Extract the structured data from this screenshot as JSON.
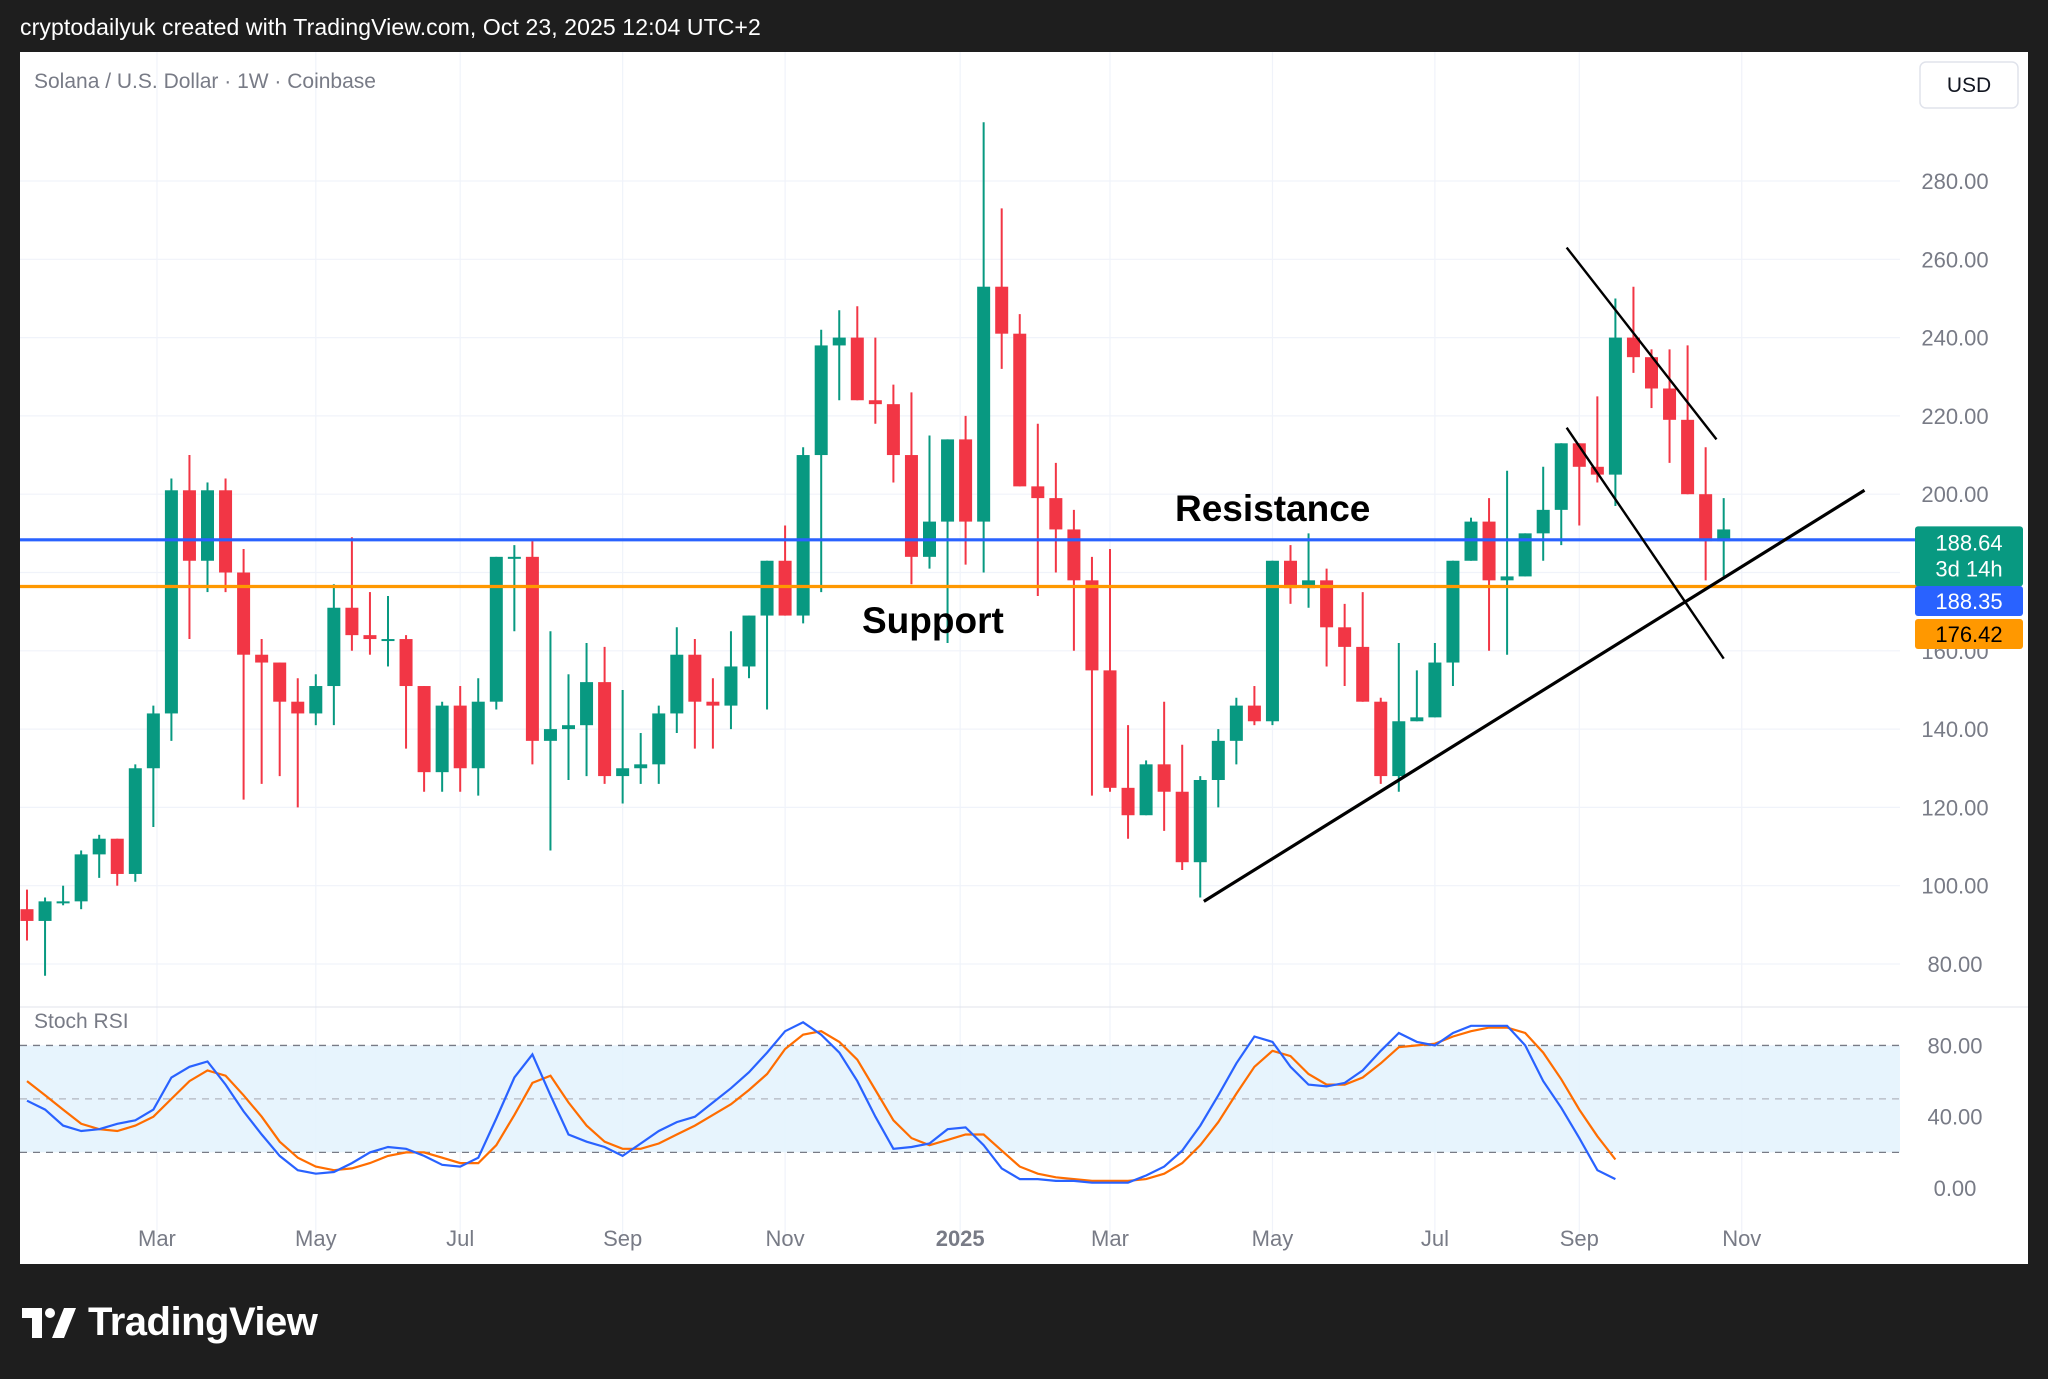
{
  "header": {
    "text": "cryptodailyuk created with TradingView.com, Oct 23, 2025 12:04 UTC+2"
  },
  "footer": {
    "brand": "TradingView",
    "logo_icon": "tradingview-logo-icon"
  },
  "colors": {
    "up": "#089981",
    "down": "#f23645",
    "resistance": "#2962ff",
    "support": "#ff9800",
    "stoch_k": "#2962ff",
    "stoch_d": "#ff6d00",
    "stoch_band": "#e3f2fd",
    "header_bg": "#1e1e1e"
  },
  "chart_data": {
    "type": "candlestick",
    "symbol_label": "Solana / U.S. Dollar · 1W · Coinbase",
    "currency_button": "USD",
    "price_axis": {
      "ticks": [
        "80.00",
        "100.00",
        "120.00",
        "140.00",
        "160.00",
        "180.00",
        "200.00",
        "220.00",
        "240.00",
        "260.00",
        "280.00"
      ],
      "tick_values": [
        80,
        100,
        120,
        140,
        160,
        180,
        200,
        220,
        240,
        260,
        280
      ],
      "range": [
        61,
        305
      ]
    },
    "time_axis": {
      "labels": [
        "Mar",
        "May",
        "Jul",
        "Sep",
        "Nov",
        "2025",
        "Mar",
        "May",
        "Jul",
        "Sep",
        "Nov"
      ],
      "label_positions_week": [
        7.2,
        16,
        24,
        33,
        42,
        51.7,
        60,
        69,
        78,
        86,
        95
      ]
    },
    "ohlc": [
      [
        null,
        99,
        86,
        91
      ],
      [
        91,
        97,
        77,
        96
      ],
      [
        96,
        100,
        95,
        96
      ],
      [
        96,
        109,
        94,
        108
      ],
      [
        108,
        113,
        102,
        112
      ],
      [
        112,
        112,
        100,
        103
      ],
      [
        103,
        131,
        101,
        130
      ],
      [
        130,
        146,
        115,
        144
      ],
      [
        144,
        204,
        137,
        201
      ],
      [
        201,
        210,
        163,
        183
      ],
      [
        183,
        203,
        175,
        201
      ],
      [
        201,
        204,
        175,
        180
      ],
      [
        180,
        186,
        122,
        159
      ],
      [
        159,
        163,
        126,
        157
      ],
      [
        157,
        157,
        128,
        147
      ],
      [
        147,
        153,
        120,
        144
      ],
      [
        144,
        154,
        141,
        151
      ],
      [
        151,
        177,
        141,
        171
      ],
      [
        171,
        189,
        160,
        164
      ],
      [
        164,
        175,
        159,
        163
      ],
      [
        163,
        174,
        156,
        163
      ],
      [
        163,
        164,
        135,
        151
      ],
      [
        151,
        151,
        124,
        129
      ],
      [
        129,
        147,
        124,
        146
      ],
      [
        146,
        151,
        124,
        130
      ],
      [
        130,
        153,
        123,
        147
      ],
      [
        147,
        184,
        145,
        184
      ],
      [
        184,
        187,
        165,
        184
      ],
      [
        184,
        188,
        131,
        137
      ],
      [
        137,
        165,
        109,
        140
      ],
      [
        140,
        154,
        127,
        141
      ],
      [
        141,
        162,
        128,
        152
      ],
      [
        152,
        161,
        126,
        128
      ],
      [
        128,
        150,
        121,
        130
      ],
      [
        130,
        139,
        126,
        131
      ],
      [
        131,
        146,
        126,
        144
      ],
      [
        144,
        166,
        139,
        159
      ],
      [
        159,
        163,
        135,
        147
      ],
      [
        147,
        153,
        135,
        146
      ],
      [
        146,
        165,
        140,
        156
      ],
      [
        156,
        166,
        153,
        169
      ],
      [
        169,
        183,
        145,
        183
      ],
      [
        183,
        192,
        169,
        169
      ],
      [
        169,
        212,
        167,
        210
      ],
      [
        210,
        242,
        175,
        238
      ],
      [
        238,
        247,
        224,
        240
      ],
      [
        240,
        248,
        225,
        224
      ],
      [
        224,
        240,
        218,
        223
      ],
      [
        223,
        228,
        203,
        210
      ],
      [
        210,
        226,
        177,
        184
      ],
      [
        184,
        215,
        181,
        193
      ],
      [
        193,
        214,
        162,
        214
      ],
      [
        214,
        220,
        182,
        193
      ],
      [
        193,
        295,
        180,
        253
      ],
      [
        253,
        273,
        232,
        241
      ],
      [
        241,
        246,
        219,
        202
      ],
      [
        202,
        218,
        174,
        199
      ],
      [
        199,
        208,
        180,
        191
      ],
      [
        191,
        196,
        160,
        178
      ],
      [
        178,
        184,
        123,
        155
      ],
      [
        155,
        186,
        124,
        125
      ],
      [
        125,
        141,
        112,
        118
      ],
      [
        118,
        132,
        119,
        131
      ],
      [
        131,
        147,
        114,
        124
      ],
      [
        124,
        136,
        104,
        106
      ],
      [
        106,
        128,
        97,
        127
      ],
      [
        127,
        140,
        120,
        137
      ],
      [
        137,
        148,
        131,
        146
      ],
      [
        146,
        151,
        141,
        142
      ],
      [
        142,
        178,
        141,
        183
      ],
      [
        183,
        187,
        172,
        176
      ],
      [
        176,
        190,
        171,
        178
      ],
      [
        178,
        181,
        156,
        166
      ],
      [
        166,
        172,
        151,
        161
      ],
      [
        161,
        175,
        148,
        147
      ],
      [
        147,
        148,
        126,
        128
      ],
      [
        128,
        162,
        124,
        142
      ],
      [
        142,
        155,
        145,
        143
      ],
      [
        143,
        162,
        148,
        157
      ],
      [
        157,
        182,
        151,
        183
      ],
      [
        183,
        194,
        183,
        193
      ],
      [
        193,
        199,
        160,
        178
      ],
      [
        178,
        206,
        159,
        179
      ],
      [
        179,
        186,
        179,
        190
      ],
      [
        190,
        207,
        183,
        196
      ],
      [
        196,
        209,
        187,
        213
      ],
      [
        213,
        210,
        192,
        207
      ],
      [
        207,
        225,
        203,
        205
      ],
      [
        205,
        250,
        197,
        240
      ],
      [
        240,
        253,
        231,
        235
      ],
      [
        235,
        237,
        222,
        227
      ],
      [
        227,
        237,
        208,
        219
      ],
      [
        219,
        238,
        212,
        200
      ],
      [
        200,
        212,
        178,
        188
      ],
      [
        188,
        199,
        179,
        191
      ]
    ],
    "stoch_rsi": {
      "ticks": [
        "0.00",
        "40.00",
        "80.00"
      ],
      "tick_values": [
        0,
        40,
        80
      ],
      "band": [
        20,
        80
      ],
      "k": [
        49,
        44,
        35,
        32,
        33,
        36,
        38,
        44,
        62,
        68,
        71,
        58,
        43,
        30,
        18,
        10,
        8,
        9,
        14,
        20,
        23,
        22,
        18,
        13,
        12,
        17,
        39,
        62,
        75,
        52,
        30,
        26,
        23,
        18,
        25,
        32,
        37,
        40,
        48,
        56,
        65,
        76,
        88,
        93,
        86,
        76,
        60,
        40,
        22,
        23,
        25,
        33,
        34,
        24,
        11,
        5,
        5,
        4,
        4,
        3,
        3,
        3,
        7,
        12,
        21,
        35,
        52,
        70,
        85,
        82,
        68,
        58,
        57,
        59,
        66,
        77,
        87,
        82,
        80,
        87,
        91,
        91,
        91,
        80,
        60,
        45,
        28,
        10,
        5
      ],
      "d": [
        60,
        52,
        44,
        36,
        33,
        32,
        35,
        40,
        50,
        60,
        66,
        63,
        52,
        40,
        26,
        17,
        12,
        10,
        11,
        14,
        18,
        20,
        20,
        17,
        14,
        14,
        24,
        41,
        59,
        63,
        48,
        35,
        26,
        22,
        22,
        25,
        30,
        35,
        41,
        47,
        55,
        64,
        78,
        86,
        88,
        82,
        72,
        55,
        38,
        28,
        24,
        27,
        30,
        30,
        21,
        12,
        8,
        6,
        5,
        4,
        4,
        4,
        5,
        8,
        14,
        24,
        37,
        53,
        68,
        77,
        74,
        64,
        58,
        58,
        62,
        70,
        79,
        80,
        81,
        85,
        88,
        90,
        90,
        87,
        76,
        61,
        44,
        29,
        16
      ]
    },
    "horizontal_lines": [
      {
        "name": "Resistance",
        "price": 188.35,
        "color": "#2962ff"
      },
      {
        "name": "Support",
        "price": 176.42,
        "color": "#ff9800"
      }
    ],
    "trendlines": [
      {
        "from": [
          65.2,
          96
        ],
        "to": [
          101.8,
          201
        ]
      },
      {
        "from": [
          85.3,
          263
        ],
        "to": [
          93.6,
          214
        ]
      },
      {
        "from": [
          85.3,
          217
        ],
        "to": [
          94.0,
          158
        ]
      }
    ],
    "annotations": {
      "resistance_label": "Resistance",
      "support_label": "Support"
    },
    "price_tags": {
      "current": "188.64",
      "countdown": "3d 14h",
      "resistance": "188.35",
      "support": "176.42"
    },
    "indicator_label": "Stoch RSI",
    "grid": true
  }
}
